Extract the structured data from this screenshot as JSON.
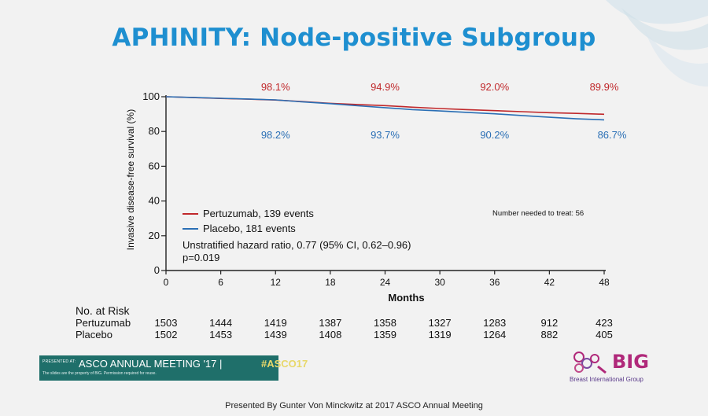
{
  "slide": {
    "title": "APHINITY: Node-positive Subgroup",
    "footer": "Presented By Gunter Von Minckwitz at 2017 ASCO Annual Meeting"
  },
  "colors": {
    "pertuzumab": "#c0282b",
    "placebo": "#2a6fb5",
    "title": "#1e8fd0"
  },
  "chart_data": {
    "type": "line",
    "title": "",
    "xlabel": "Months",
    "ylabel": "Invasive disease-free survival (%)",
    "xlim": [
      0,
      48
    ],
    "ylim": [
      0,
      100
    ],
    "x_ticks": [
      "0",
      "6",
      "12",
      "18",
      "24",
      "30",
      "36",
      "42",
      "48"
    ],
    "y_ticks": [
      "0",
      "20",
      "40",
      "60",
      "80",
      "100"
    ],
    "series": [
      {
        "name": "Pertuzumab, 139 events",
        "x": [
          0,
          3,
          6,
          9,
          12,
          15,
          18,
          21,
          24,
          27,
          30,
          33,
          36,
          39,
          42,
          45,
          48
        ],
        "y": [
          100,
          99.5,
          99.0,
          98.6,
          98.1,
          97.2,
          96.2,
          95.5,
          94.9,
          94.0,
          93.2,
          92.6,
          92.0,
          91.4,
          90.8,
          90.4,
          89.9
        ]
      },
      {
        "name": "Placebo, 181 events",
        "x": [
          0,
          3,
          6,
          9,
          12,
          15,
          18,
          21,
          24,
          27,
          30,
          33,
          36,
          39,
          42,
          45,
          48
        ],
        "y": [
          100,
          99.6,
          99.1,
          98.7,
          98.2,
          97.0,
          96.0,
          94.8,
          93.7,
          92.6,
          91.8,
          91.0,
          90.2,
          89.2,
          88.2,
          87.3,
          86.7
        ]
      }
    ],
    "annotations_pertuzumab": [
      {
        "x": 12,
        "label": "98.1%"
      },
      {
        "x": 24,
        "label": "94.9%"
      },
      {
        "x": 36,
        "label": "92.0%"
      },
      {
        "x": 48,
        "label": "89.9%"
      }
    ],
    "annotations_placebo": [
      {
        "x": 12,
        "label": "98.2%"
      },
      {
        "x": 24,
        "label": "93.7%"
      },
      {
        "x": 36,
        "label": "90.2%"
      },
      {
        "x": 48,
        "label": "86.7%"
      }
    ],
    "stats": [
      "Unstratified hazard ratio, 0.77 (95% CI, 0.62–0.96)",
      "p=0.019"
    ],
    "nnt": "Number needed to treat: 56"
  },
  "risk_table": {
    "heading": "No. at Risk",
    "rows": [
      {
        "label": "Pertuzumab",
        "values": [
          "1503",
          "1444",
          "1419",
          "1387",
          "1358",
          "1327",
          "1283",
          "912",
          "423"
        ]
      },
      {
        "label": "Placebo",
        "values": [
          "1502",
          "1453",
          "1439",
          "1408",
          "1359",
          "1319",
          "1264",
          "882",
          "405"
        ]
      }
    ]
  },
  "branding": {
    "presented_at": "PRESENTED AT:",
    "meeting": "ASCO ANNUAL MEETING '17  |",
    "hashtag": "#ASCO17",
    "note": "The slides are the property of BIG. Permission required for reuse.",
    "big_logo": "BIG",
    "big_sub": "Breast International Group"
  }
}
